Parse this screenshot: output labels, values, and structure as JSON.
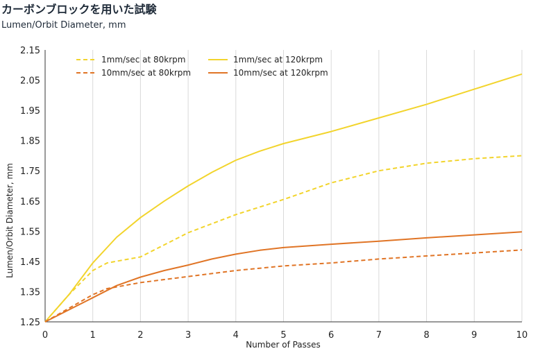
{
  "header": {
    "title": "カーボンブロックを用いた試験",
    "subtitle": "Lumen/Orbit Diameter, mm"
  },
  "chart_data": {
    "type": "line",
    "xlabel": "Number of Passes",
    "ylabel": "Lumen/Orbit Diameter, mm",
    "xlim": [
      0,
      10
    ],
    "ylim": [
      1.25,
      2.15
    ],
    "x_ticks": [
      "0",
      "1",
      "2",
      "3",
      "4",
      "5",
      "6",
      "7",
      "8",
      "9",
      "10"
    ],
    "y_ticks": [
      "1.25",
      "1.35",
      "1.45",
      "1.55",
      "1.65",
      "1.75",
      "1.85",
      "1.95",
      "2.05",
      "2.15"
    ],
    "grid": "vertical",
    "legend_position": "top-left",
    "series": [
      {
        "name": "1mm/sec at 80krpm",
        "color": "#f2d42c",
        "dash": true,
        "x": [
          0,
          0.5,
          1,
          1.3,
          2,
          3,
          4,
          5,
          6,
          7,
          8,
          9,
          10
        ],
        "y": [
          1.25,
          1.34,
          1.42,
          1.445,
          1.465,
          1.545,
          1.605,
          1.655,
          1.71,
          1.75,
          1.775,
          1.79,
          1.8
        ]
      },
      {
        "name": "1mm/sec at 120krpm",
        "color": "#f2d42c",
        "dash": false,
        "x": [
          0,
          0.5,
          1,
          1.5,
          2,
          2.5,
          3,
          3.5,
          4,
          4.5,
          5,
          6,
          7,
          8,
          9,
          10
        ],
        "y": [
          1.25,
          1.34,
          1.445,
          1.53,
          1.595,
          1.65,
          1.7,
          1.745,
          1.785,
          1.815,
          1.84,
          1.88,
          1.925,
          1.97,
          2.02,
          2.07
        ]
      },
      {
        "name": "10mm/sec at 80krpm",
        "color": "#e07425",
        "dash": true,
        "x": [
          0,
          0.5,
          1,
          1.3,
          2,
          3,
          4,
          5,
          6,
          7,
          8,
          9,
          10
        ],
        "y": [
          1.25,
          1.295,
          1.34,
          1.36,
          1.38,
          1.4,
          1.42,
          1.435,
          1.445,
          1.458,
          1.468,
          1.478,
          1.488
        ]
      },
      {
        "name": "10mm/sec at 120krpm",
        "color": "#e07425",
        "dash": false,
        "x": [
          0,
          0.5,
          1,
          1.5,
          2,
          2.5,
          3,
          3.5,
          4,
          4.5,
          5,
          6,
          7,
          8,
          9,
          10
        ],
        "y": [
          1.25,
          1.29,
          1.33,
          1.37,
          1.398,
          1.42,
          1.438,
          1.458,
          1.474,
          1.487,
          1.496,
          1.507,
          1.517,
          1.528,
          1.538,
          1.548
        ]
      }
    ]
  }
}
